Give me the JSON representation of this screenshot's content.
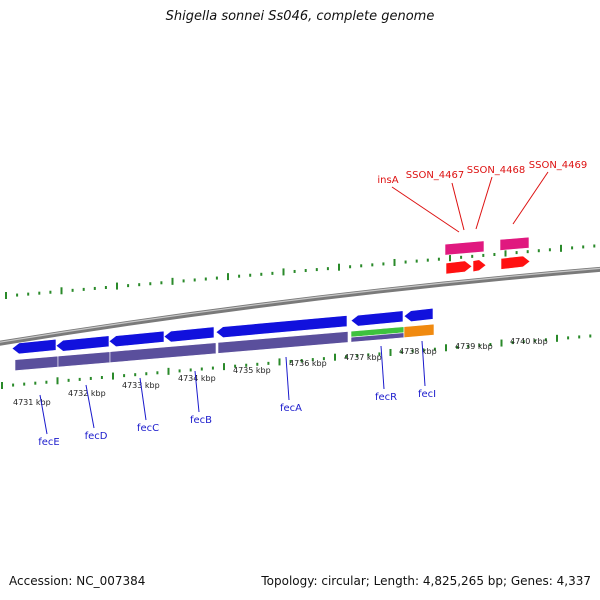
{
  "title": "Shigella sonnei Ss046, complete genome",
  "footer": {
    "accession": "Accession: NC_007384",
    "summary": "Topology: circular; Length: 4,825,265 bp; Genes: 4,337"
  },
  "colors": {
    "forward_gene": "#e0197f",
    "forward_cds": "#ff1111",
    "reverse_gene": "#1111dd",
    "reverse_cds_purple": "#5a4f9c",
    "reverse_cds_green": "#3ec23e",
    "reverse_cds_orange": "#f08a10",
    "ticks": "#2a8a2a",
    "gene_label": "#1a1acc",
    "forward_label": "#dd1111"
  },
  "scale_labels": [
    "4731 kbp",
    "4732 kbp",
    "4733 kbp",
    "4734 kbp",
    "4735 kbp",
    "4736 kbp",
    "4737 kbp",
    "4738 kbp",
    "4739 kbp",
    "4740 kbp"
  ],
  "reverse_genes": [
    "fecE",
    "fecD",
    "fecC",
    "fecB",
    "fecA",
    "fecR",
    "fecI"
  ],
  "forward_genes": [
    "insA",
    "SSON_4467",
    "SSON_4468",
    "SSON_4469"
  ]
}
